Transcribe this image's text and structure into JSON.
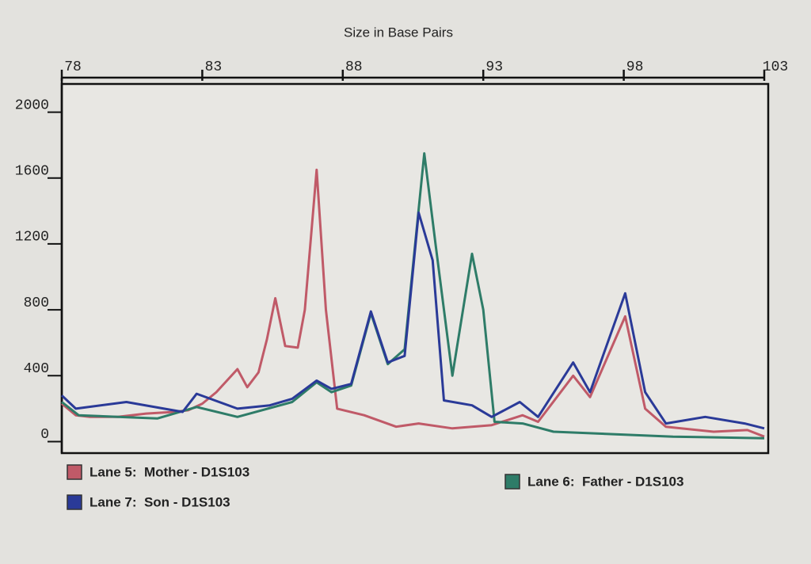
{
  "chart_data": {
    "type": "line",
    "title": "Size in Base Pairs",
    "xlim": [
      78,
      103
    ],
    "xticks": [
      78,
      83,
      88,
      93,
      98,
      103
    ],
    "ylim": [
      -70,
      2200
    ],
    "yticks": [
      0,
      400,
      800,
      1200,
      1600,
      2000
    ],
    "legend": "bottom",
    "series": [
      {
        "name": "Lane 5:  Mother - D1S103",
        "color": "#c05a68",
        "x": [
          78,
          78.5,
          79,
          80,
          81,
          82,
          82.5,
          83,
          83.5,
          84.25,
          84.6,
          85,
          85.3,
          85.6,
          85.95,
          86.4,
          86.65,
          87.07,
          87.4,
          87.8,
          88.76,
          89.9,
          90.7,
          91.9,
          93.3,
          94.4,
          94.95,
          96.2,
          96.8,
          98.05,
          98.76,
          99.5,
          101.2,
          102.4,
          103
        ],
        "values": [
          230,
          160,
          150,
          150,
          170,
          180,
          190,
          230,
          300,
          440,
          330,
          420,
          620,
          870,
          580,
          570,
          800,
          1650,
          800,
          200,
          160,
          90,
          110,
          80,
          100,
          160,
          120,
          400,
          270,
          760,
          200,
          90,
          60,
          70,
          30
        ]
      },
      {
        "name": "Lane 6:  Father - D1S103",
        "color": "#2e7c68",
        "x": [
          78,
          78.6,
          81.4,
          82.8,
          84.25,
          86.2,
          87.07,
          87.6,
          88.3,
          89,
          89.6,
          90.2,
          90.9,
          91.3,
          91.9,
          92.6,
          93,
          93.4,
          94.4,
          95.5,
          98.3,
          99.75,
          103
        ],
        "values": [
          240,
          160,
          140,
          210,
          150,
          240,
          360,
          300,
          340,
          780,
          470,
          560,
          1750,
          1200,
          400,
          1140,
          800,
          120,
          110,
          60,
          40,
          30,
          20
        ]
      },
      {
        "name": "Lane 7:  Son - D1S103",
        "color": "#2a3a98",
        "x": [
          78,
          78.5,
          80.3,
          82.3,
          82.8,
          84.25,
          85.4,
          86.2,
          87.07,
          87.6,
          88.3,
          89,
          89.6,
          90.2,
          90.7,
          91.2,
          91.6,
          92.6,
          93.3,
          94.3,
          94.95,
          96.2,
          96.8,
          98.05,
          98.76,
          99.5,
          100.9,
          102.3,
          103
        ],
        "values": [
          280,
          200,
          240,
          180,
          290,
          200,
          220,
          260,
          370,
          320,
          350,
          790,
          480,
          520,
          1390,
          1100,
          250,
          220,
          150,
          240,
          150,
          480,
          300,
          900,
          300,
          110,
          150,
          110,
          80
        ]
      }
    ]
  }
}
